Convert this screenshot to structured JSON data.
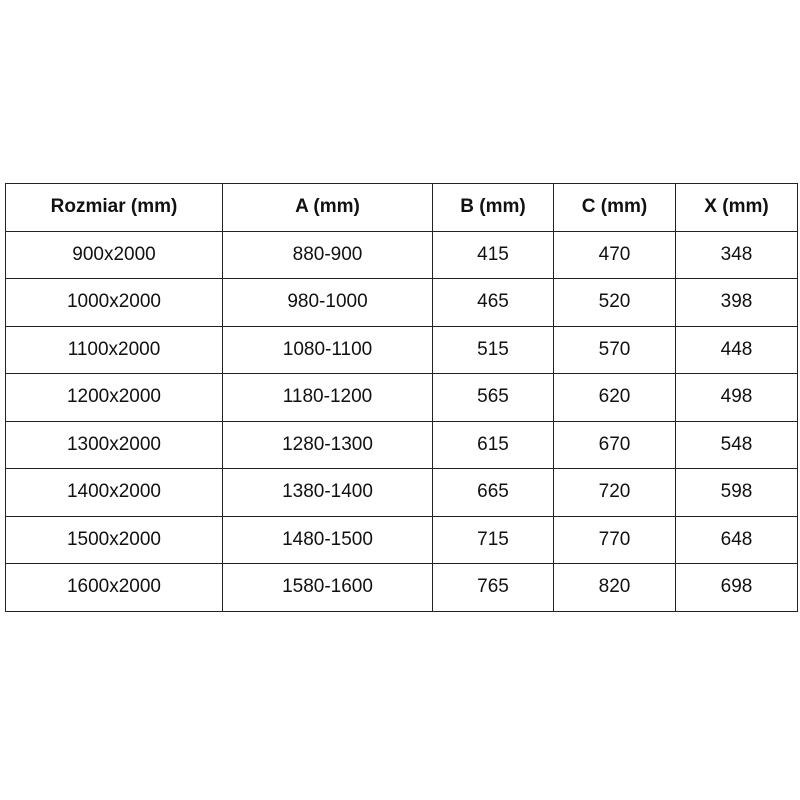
{
  "table": {
    "headers": [
      "Rozmiar (mm)",
      "A (mm)",
      "B (mm)",
      "C (mm)",
      "X (mm)"
    ],
    "rows": [
      [
        "900x2000",
        "880-900",
        "415",
        "470",
        "348"
      ],
      [
        "1000x2000",
        "980-1000",
        "465",
        "520",
        "398"
      ],
      [
        "1100x2000",
        "1080-1100",
        "515",
        "570",
        "448"
      ],
      [
        "1200x2000",
        "1180-1200",
        "565",
        "620",
        "498"
      ],
      [
        "1300x2000",
        "1280-1300",
        "615",
        "670",
        "548"
      ],
      [
        "1400x2000",
        "1380-1400",
        "665",
        "720",
        "598"
      ],
      [
        "1500x2000",
        "1480-1500",
        "715",
        "770",
        "648"
      ],
      [
        "1600x2000",
        "1580-1600",
        "765",
        "820",
        "698"
      ]
    ]
  }
}
